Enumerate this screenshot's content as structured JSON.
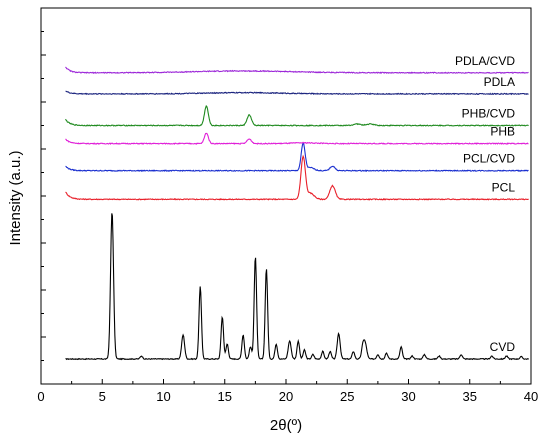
{
  "chart_data": {
    "type": "line",
    "title": "",
    "xlabel": "2θ(º)",
    "ylabel": "Intensity (a.u.)",
    "xlim": [
      0,
      40
    ],
    "xticks": [
      0,
      5,
      10,
      15,
      20,
      25,
      30,
      35,
      40
    ],
    "ytick_labels_shown": false,
    "grid": false,
    "legend": "inline labels at right",
    "colors": {
      "CVD": "#000000",
      "PCL": "#e8202a",
      "PCL/CVD": "#1a2fcf",
      "PHB": "#e020d8",
      "PHB/CVD": "#1f8a1f",
      "PDLA": "#1a237e",
      "PDLA/CVD": "#9c27d8"
    },
    "series": [
      {
        "name": "CVD",
        "offset": 0.0,
        "baseline": 0.02,
        "peaks": [
          [
            5.8,
            0.98,
            0.12
          ],
          [
            8.2,
            0.02,
            0.1
          ],
          [
            11.6,
            0.16,
            0.12
          ],
          [
            13.0,
            0.48,
            0.1
          ],
          [
            14.8,
            0.28,
            0.1
          ],
          [
            15.2,
            0.1,
            0.1
          ],
          [
            16.5,
            0.16,
            0.1
          ],
          [
            17.1,
            0.08,
            0.1
          ],
          [
            17.5,
            0.68,
            0.1
          ],
          [
            18.4,
            0.6,
            0.1
          ],
          [
            19.2,
            0.1,
            0.1
          ],
          [
            20.3,
            0.12,
            0.12
          ],
          [
            21.0,
            0.12,
            0.1
          ],
          [
            21.5,
            0.06,
            0.1
          ],
          [
            22.2,
            0.03,
            0.1
          ],
          [
            23.0,
            0.05,
            0.1
          ],
          [
            23.6,
            0.05,
            0.1
          ],
          [
            24.3,
            0.17,
            0.12
          ],
          [
            25.5,
            0.05,
            0.1
          ],
          [
            26.3,
            0.1,
            0.12
          ],
          [
            26.5,
            0.08,
            0.12
          ],
          [
            27.5,
            0.03,
            0.1
          ],
          [
            28.2,
            0.04,
            0.1
          ],
          [
            29.4,
            0.08,
            0.1
          ],
          [
            30.3,
            0.02,
            0.1
          ],
          [
            31.3,
            0.03,
            0.1
          ],
          [
            32.5,
            0.02,
            0.1
          ],
          [
            34.3,
            0.03,
            0.1
          ],
          [
            36.8,
            0.02,
            0.1
          ],
          [
            38.0,
            0.02,
            0.1
          ],
          [
            39.2,
            0.015,
            0.1
          ]
        ]
      },
      {
        "name": "PCL",
        "offset": 1.08,
        "baseline": 0.0,
        "start_rise": 0.05,
        "peaks": [
          [
            21.4,
            0.28,
            0.18
          ],
          [
            22.0,
            0.04,
            0.3
          ],
          [
            23.8,
            0.09,
            0.22
          ]
        ]
      },
      {
        "name": "PCL/CVD",
        "offset": 1.27,
        "baseline": 0.0,
        "start_rise": 0.03,
        "peaks": [
          [
            21.4,
            0.18,
            0.16
          ],
          [
            22.0,
            0.02,
            0.3
          ],
          [
            23.8,
            0.03,
            0.2
          ]
        ]
      },
      {
        "name": "PHB",
        "offset": 1.45,
        "baseline": 0.0,
        "start_rise": 0.03,
        "peaks": [
          [
            13.5,
            0.07,
            0.16
          ],
          [
            17.0,
            0.03,
            0.18
          ],
          [
            21.5,
            0.005,
            1.0
          ]
        ]
      },
      {
        "name": "PHB/CVD",
        "offset": 1.57,
        "baseline": 0.0,
        "start_rise": 0.04,
        "peaks": [
          [
            13.5,
            0.13,
            0.16
          ],
          [
            17.0,
            0.07,
            0.18
          ],
          [
            25.8,
            0.01,
            0.3
          ],
          [
            26.9,
            0.01,
            0.3
          ]
        ]
      },
      {
        "name": "PDLA",
        "offset": 1.78,
        "baseline": 0.0,
        "start_rise": 0.02,
        "peaks": [
          [
            16.5,
            0.008,
            3.0
          ]
        ]
      },
      {
        "name": "PDLA/CVD",
        "offset": 1.92,
        "baseline": 0.0,
        "start_rise": 0.04,
        "peaks": [
          [
            16.5,
            0.012,
            4.0
          ]
        ]
      }
    ]
  }
}
